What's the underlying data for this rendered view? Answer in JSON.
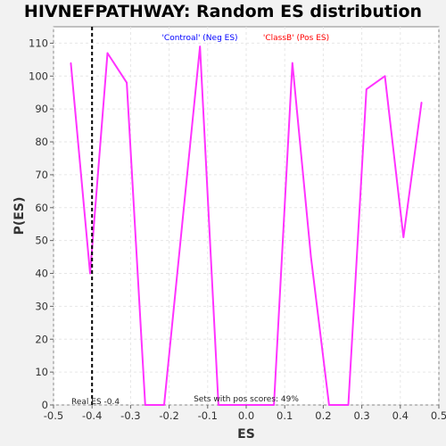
{
  "chart_data": {
    "type": "line",
    "title": "HIVNEFPATHWAY: Random ES distribution",
    "xlabel": "ES",
    "ylabel": "P(ES)",
    "xlim": [
      -0.5,
      0.5
    ],
    "ylim": [
      0,
      115
    ],
    "x_ticks": [
      -0.5,
      -0.4,
      -0.3,
      -0.2,
      -0.1,
      0.0,
      0.1,
      0.2,
      0.3,
      0.4,
      0.5
    ],
    "x_tick_labels": [
      "-0.5",
      "-0.4",
      "-0.3",
      "-0.2",
      "-0.1",
      "0.0",
      "0.1",
      "0.2",
      "0.3",
      "0.4",
      "0.5"
    ],
    "y_ticks": [
      0,
      10,
      20,
      30,
      40,
      50,
      60,
      70,
      80,
      90,
      100,
      110
    ],
    "grid": true,
    "series": [
      {
        "color": "#ff33ff",
        "x": [
          -0.455,
          -0.405,
          -0.36,
          -0.31,
          -0.262,
          -0.213,
          -0.167,
          -0.12,
          -0.072,
          -0.024,
          0.024,
          0.072,
          0.12,
          0.168,
          0.215,
          0.265,
          0.312,
          0.36,
          0.408,
          0.455
        ],
        "y": [
          104,
          40,
          107,
          98,
          0,
          0,
          54,
          109,
          0,
          0,
          0,
          0,
          104,
          45,
          0,
          0,
          96,
          100,
          51,
          92
        ]
      }
    ],
    "real_es": -0.4,
    "real_es_label": "Real ES -0.4",
    "legend": [
      {
        "label": "'Controal' (Neg ES)",
        "color": "#0000ff"
      },
      {
        "label": "'ClassB' (Pos ES)",
        "color": "#ff0000"
      }
    ],
    "annotation": "Sets with pos scores: 49%"
  }
}
